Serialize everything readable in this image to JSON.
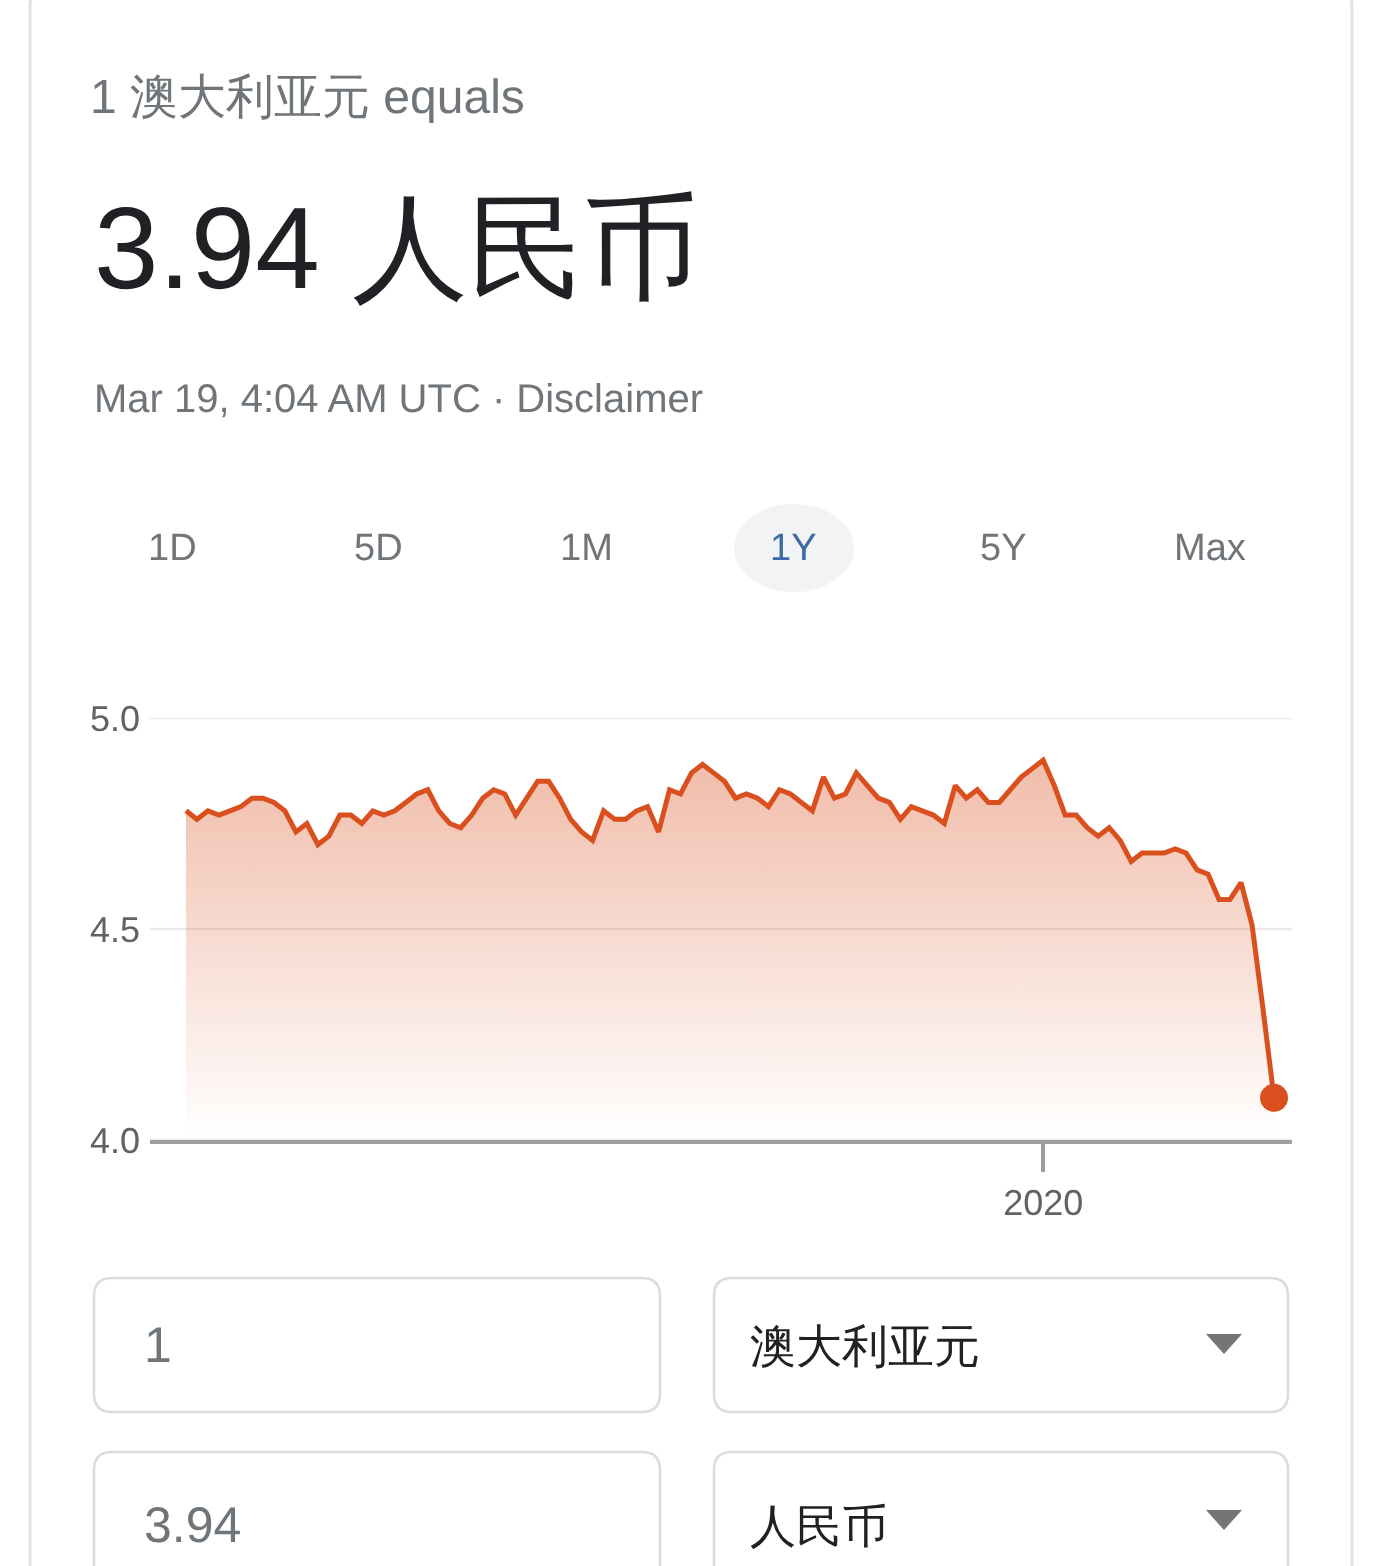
{
  "chart_data": {
    "type": "area",
    "title": "1 澳大利亚元 equals",
    "subtitle": "3.94 人民币",
    "annotations": [
      "Mar 19, 4:04 AM UTC · Disclaimer",
      "1D",
      "5D",
      "1M",
      "1Y",
      "5Y",
      "Max",
      "1",
      "澳大利亚元",
      "3.94",
      "人民币"
    ],
    "categories": [
      null,
      null,
      null,
      null,
      null,
      null,
      null,
      null,
      null,
      null,
      null,
      null,
      null,
      null,
      null,
      null,
      null,
      null,
      null,
      null,
      null,
      null,
      null,
      null,
      null,
      null,
      null,
      null,
      null,
      null,
      null,
      null,
      null,
      null,
      null,
      null,
      null,
      null,
      null,
      null,
      null,
      null,
      null,
      null,
      null,
      null,
      null,
      null,
      null,
      null,
      null,
      null,
      null,
      null,
      null,
      null,
      null,
      null,
      null,
      null,
      null,
      null,
      null,
      null,
      null,
      null,
      null,
      null,
      null,
      null,
      null,
      null,
      null,
      null,
      null,
      null,
      null,
      null,
      "2020",
      null,
      null,
      null,
      null,
      null,
      null,
      null,
      null,
      null,
      null,
      null,
      null,
      null,
      null,
      null,
      null,
      null,
      null,
      null,
      null,
      null
    ],
    "series": [
      {
        "color": "#d9501e",
        "values": [
          4.78,
          4.76,
          4.78,
          4.77,
          4.78,
          4.79,
          4.81,
          4.81,
          4.8,
          4.78,
          4.73,
          4.75,
          4.7,
          4.72,
          4.77,
          4.77,
          4.75,
          4.78,
          4.77,
          4.78,
          4.8,
          4.82,
          4.83,
          4.78,
          4.75,
          4.74,
          4.77,
          4.81,
          4.83,
          4.82,
          4.77,
          4.81,
          4.85,
          4.85,
          4.81,
          4.76,
          4.73,
          4.71,
          4.78,
          4.76,
          4.76,
          4.78,
          4.79,
          4.73,
          4.83,
          4.82,
          4.87,
          4.89,
          4.87,
          4.85,
          4.81,
          4.82,
          4.81,
          4.79,
          4.83,
          4.82,
          4.8,
          4.78,
          4.86,
          4.81,
          4.82,
          4.87,
          4.84,
          4.81,
          4.8,
          4.76,
          4.79,
          4.78,
          4.77,
          4.75,
          4.84,
          4.81,
          4.83,
          4.8,
          4.8,
          4.83,
          4.86,
          4.88,
          4.9,
          4.84,
          4.77,
          4.77,
          4.74,
          4.72,
          4.74,
          4.71,
          4.66,
          4.68,
          4.68,
          4.68,
          4.69,
          4.68,
          4.64,
          4.63,
          4.57,
          4.57,
          4.61,
          4.51,
          4.31,
          4.1
        ]
      },
      {
        "type": "scatter",
        "marker": "circle",
        "color": "#d9501e",
        "values": [
          null,
          null,
          null,
          null,
          null,
          null,
          null,
          null,
          null,
          null,
          null,
          null,
          null,
          null,
          null,
          null,
          null,
          null,
          null,
          null,
          null,
          null,
          null,
          null,
          null,
          null,
          null,
          null,
          null,
          null,
          null,
          null,
          null,
          null,
          null,
          null,
          null,
          null,
          null,
          null,
          null,
          null,
          null,
          null,
          null,
          null,
          null,
          null,
          null,
          null,
          null,
          null,
          null,
          null,
          null,
          null,
          null,
          null,
          null,
          null,
          null,
          null,
          null,
          null,
          null,
          null,
          null,
          null,
          null,
          null,
          null,
          null,
          null,
          null,
          null,
          null,
          null,
          null,
          null,
          null,
          null,
          null,
          null,
          null,
          null,
          null,
          null,
          null,
          null,
          null,
          null,
          null,
          null,
          null,
          null,
          null,
          null,
          null,
          null,
          4.1
        ]
      }
    ],
    "ylim": [
      4.0,
      5.0
    ],
    "yticks": [
      {
        "value": 4.0,
        "label": "4.0"
      },
      {
        "value": 4.5,
        "label": "4.5"
      },
      {
        "value": 5.0,
        "label": "5.0"
      }
    ],
    "grid": "y",
    "marker": "none",
    "line_style": "solid"
  }
}
